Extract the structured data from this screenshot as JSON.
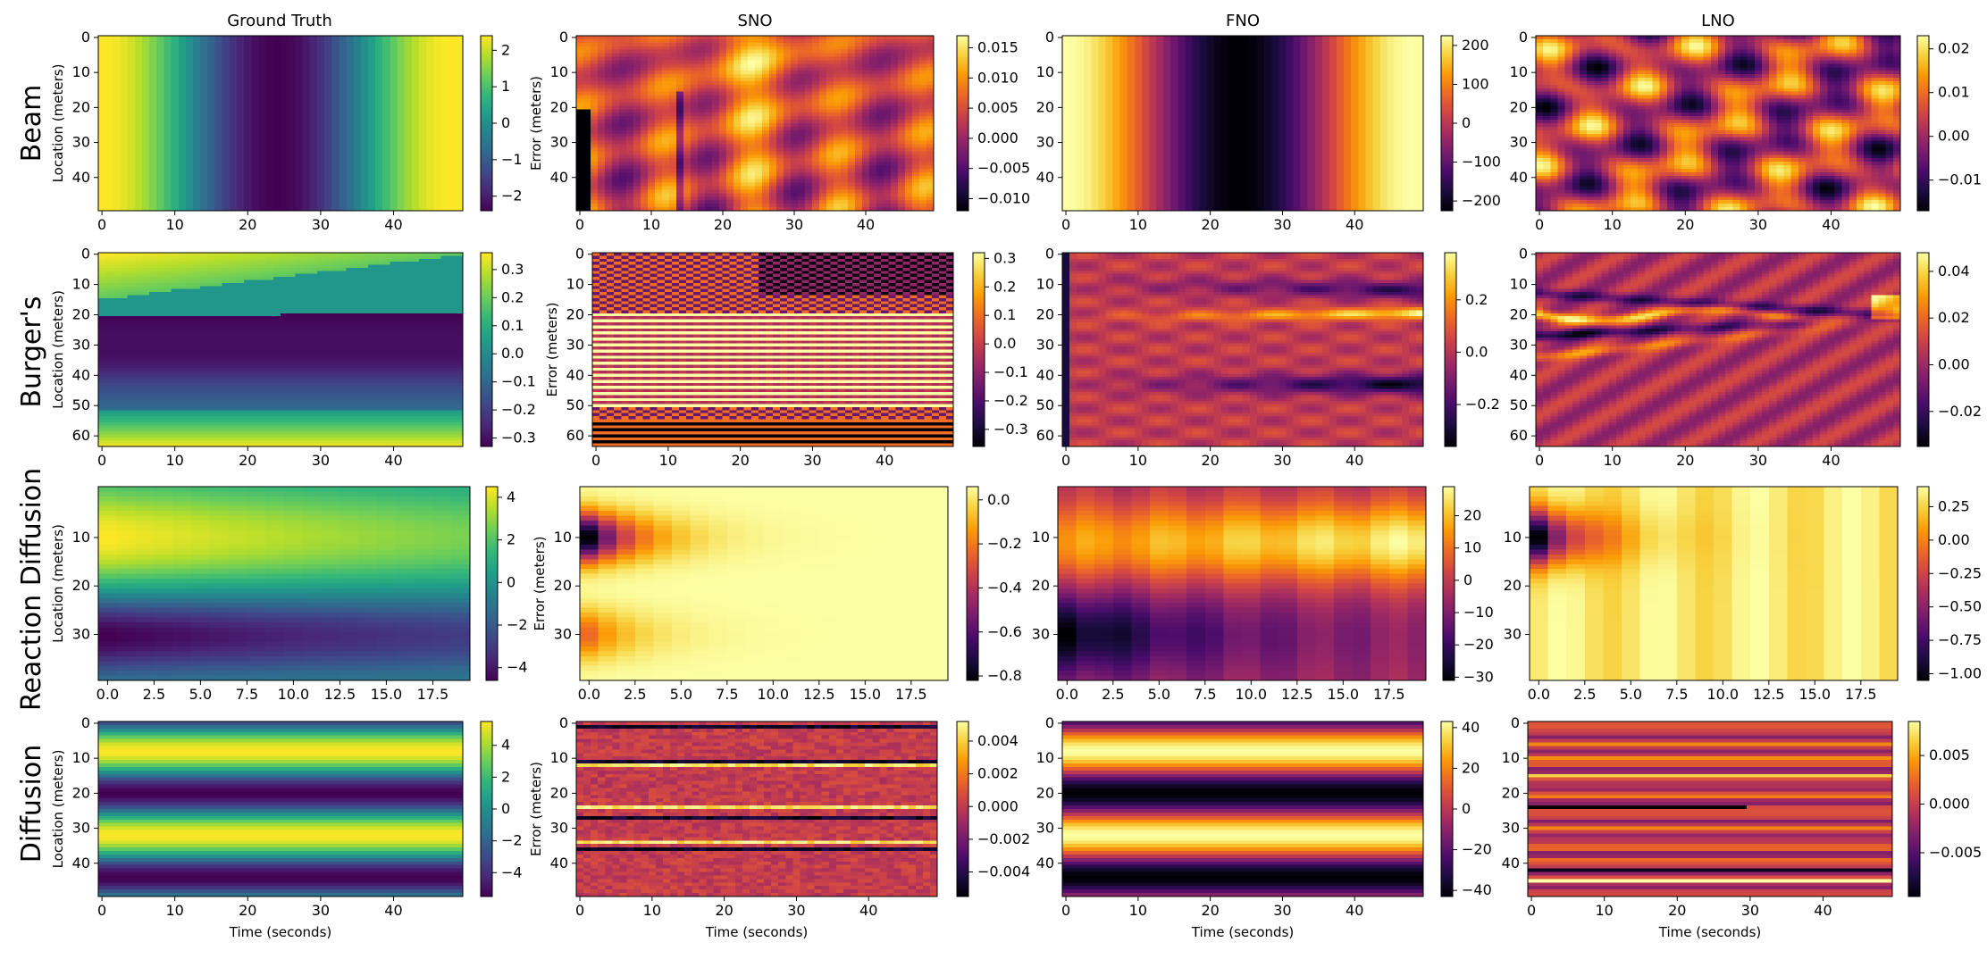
{
  "figure": {
    "columns": [
      "Ground Truth",
      "SNO",
      "FNO",
      "LNO"
    ],
    "rows": [
      "Beam",
      "Burger's",
      "Reaction Diffusion",
      "Diffusion"
    ],
    "xlabel": "Time (seconds)"
  },
  "colormaps": {
    "viridis": [
      "#440154",
      "#482878",
      "#3e4989",
      "#31688e",
      "#26828e",
      "#1f9e89",
      "#35b779",
      "#6ece58",
      "#b5de2b",
      "#fde725"
    ],
    "inferno": [
      "#000004",
      "#1b0c41",
      "#4a0c6b",
      "#781c6d",
      "#a52c60",
      "#cf4446",
      "#ed6925",
      "#fb9b06",
      "#f7d13d",
      "#fcffa4"
    ]
  },
  "chart_data": [
    {
      "type": "heatmap",
      "name": "beam-ground-truth",
      "row": "Beam",
      "column": "Ground Truth",
      "cmap": "viridis",
      "pattern": "beam-gt",
      "ylabel": "Location (meters)",
      "xlabel": "",
      "nx": 50,
      "ny": 50,
      "xlim": [
        0,
        49
      ],
      "ylim": [
        49,
        0
      ],
      "xticks": [
        0,
        10,
        20,
        30,
        40
      ],
      "xtick_labels": [
        "0",
        "10",
        "20",
        "30",
        "40"
      ],
      "yticks": [
        0,
        10,
        20,
        30,
        40
      ],
      "ytick_labels": [
        "0",
        "10",
        "20",
        "30",
        "40"
      ],
      "vmin": -2.4,
      "vmax": 2.4,
      "cbar_ticks": [
        2,
        1,
        0,
        -1,
        -2
      ],
      "cbar_labels": [
        "2",
        "1",
        "0",
        "−1",
        "−2"
      ]
    },
    {
      "type": "heatmap",
      "name": "beam-sno",
      "row": "Beam",
      "column": "SNO",
      "cmap": "inferno",
      "pattern": "beam-sno",
      "ylabel": "Error (meters)",
      "xlabel": "",
      "nx": 50,
      "ny": 50,
      "xlim": [
        0,
        49
      ],
      "ylim": [
        49,
        0
      ],
      "xticks": [
        0,
        10,
        20,
        30,
        40
      ],
      "xtick_labels": [
        "0",
        "10",
        "20",
        "30",
        "40"
      ],
      "yticks": [
        0,
        10,
        20,
        30,
        40
      ],
      "ytick_labels": [
        "0",
        "10",
        "20",
        "30",
        "40"
      ],
      "vmin": -0.012,
      "vmax": 0.017,
      "cbar_ticks": [
        0.015,
        0.01,
        0.005,
        0,
        -0.005,
        -0.01
      ],
      "cbar_labels": [
        "0.015",
        "0.010",
        "0.005",
        "0.000",
        "−0.005",
        "−0.010"
      ]
    },
    {
      "type": "heatmap",
      "name": "beam-fno",
      "row": "Beam",
      "column": "FNO",
      "cmap": "inferno",
      "pattern": "beam-fno",
      "ylabel": "",
      "xlabel": "",
      "nx": 50,
      "ny": 50,
      "xlim": [
        0,
        49
      ],
      "ylim": [
        49,
        0
      ],
      "xticks": [
        0,
        10,
        20,
        30,
        40
      ],
      "xtick_labels": [
        "0",
        "10",
        "20",
        "30",
        "40"
      ],
      "yticks": [
        0,
        10,
        20,
        30,
        40
      ],
      "ytick_labels": [
        "0",
        "10",
        "20",
        "30",
        "40"
      ],
      "vmin": -225,
      "vmax": 225,
      "cbar_ticks": [
        200,
        100,
        0,
        -100,
        -200
      ],
      "cbar_labels": [
        "200",
        "100",
        "0",
        "−100",
        "−200"
      ]
    },
    {
      "type": "heatmap",
      "name": "beam-lno",
      "row": "Beam",
      "column": "LNO",
      "cmap": "inferno",
      "pattern": "beam-lno",
      "ylabel": "",
      "xlabel": "",
      "nx": 50,
      "ny": 50,
      "xlim": [
        0,
        49
      ],
      "ylim": [
        49,
        0
      ],
      "xticks": [
        0,
        10,
        20,
        30,
        40
      ],
      "xtick_labels": [
        "0",
        "10",
        "20",
        "30",
        "40"
      ],
      "yticks": [
        0,
        10,
        20,
        30,
        40
      ],
      "ytick_labels": [
        "0",
        "10",
        "20",
        "30",
        "40"
      ],
      "vmin": -0.017,
      "vmax": 0.023,
      "cbar_ticks": [
        0.02,
        0.01,
        0,
        -0.01
      ],
      "cbar_labels": [
        "0.02",
        "0.01",
        "0.00",
        "−0.01"
      ]
    },
    {
      "type": "heatmap",
      "name": "burgers-ground-truth",
      "row": "Burger's",
      "column": "Ground Truth",
      "cmap": "viridis",
      "pattern": "burgers-gt",
      "ylabel": "Location (meters)",
      "xlabel": "",
      "nx": 50,
      "ny": 64,
      "xlim": [
        0,
        49
      ],
      "ylim": [
        63,
        0
      ],
      "xticks": [
        0,
        10,
        20,
        30,
        40
      ],
      "xtick_labels": [
        "0",
        "10",
        "20",
        "30",
        "40"
      ],
      "yticks": [
        0,
        10,
        20,
        30,
        40,
        50,
        60
      ],
      "ytick_labels": [
        "0",
        "10",
        "20",
        "30",
        "40",
        "50",
        "60"
      ],
      "vmin": -0.33,
      "vmax": 0.36,
      "cbar_ticks": [
        0.3,
        0.2,
        0.1,
        0,
        -0.1,
        -0.2,
        -0.3
      ],
      "cbar_labels": [
        "0.3",
        "0.2",
        "0.1",
        "0.0",
        "−0.1",
        "−0.2",
        "−0.3"
      ]
    },
    {
      "type": "heatmap",
      "name": "burgers-sno",
      "row": "Burger's",
      "column": "SNO",
      "cmap": "inferno",
      "pattern": "burgers-sno",
      "ylabel": "Error (meters)",
      "xlabel": "",
      "nx": 50,
      "ny": 64,
      "xlim": [
        0,
        49
      ],
      "ylim": [
        63,
        0
      ],
      "xticks": [
        0,
        10,
        20,
        30,
        40
      ],
      "xtick_labels": [
        "0",
        "10",
        "20",
        "30",
        "40"
      ],
      "yticks": [
        0,
        10,
        20,
        30,
        40,
        50,
        60
      ],
      "ytick_labels": [
        "0",
        "10",
        "20",
        "30",
        "40",
        "50",
        "60"
      ],
      "vmin": -0.36,
      "vmax": 0.32,
      "cbar_ticks": [
        0.3,
        0.2,
        0.1,
        0,
        -0.1,
        -0.2,
        -0.3
      ],
      "cbar_labels": [
        "0.3",
        "0.2",
        "0.1",
        "0.0",
        "−0.1",
        "−0.2",
        "−0.3"
      ]
    },
    {
      "type": "heatmap",
      "name": "burgers-fno",
      "row": "Burger's",
      "column": "FNO",
      "cmap": "inferno",
      "pattern": "burgers-fno",
      "ylabel": "",
      "xlabel": "",
      "nx": 50,
      "ny": 64,
      "xlim": [
        0,
        49
      ],
      "ylim": [
        63,
        0
      ],
      "xticks": [
        0,
        10,
        20,
        30,
        40
      ],
      "xtick_labels": [
        "0",
        "10",
        "20",
        "30",
        "40"
      ],
      "yticks": [
        0,
        10,
        20,
        30,
        40,
        50,
        60
      ],
      "ytick_labels": [
        "0",
        "10",
        "20",
        "30",
        "40",
        "50",
        "60"
      ],
      "vmin": -0.36,
      "vmax": 0.38,
      "cbar_ticks": [
        0.2,
        0,
        -0.2
      ],
      "cbar_labels": [
        "0.2",
        "0.0",
        "−0.2"
      ]
    },
    {
      "type": "heatmap",
      "name": "burgers-lno",
      "row": "Burger's",
      "column": "LNO",
      "cmap": "inferno",
      "pattern": "burgers-lno",
      "ylabel": "",
      "xlabel": "",
      "nx": 50,
      "ny": 64,
      "xlim": [
        0,
        49
      ],
      "ylim": [
        63,
        0
      ],
      "xticks": [
        0,
        10,
        20,
        30,
        40
      ],
      "xtick_labels": [
        "0",
        "10",
        "20",
        "30",
        "40"
      ],
      "yticks": [
        0,
        10,
        20,
        30,
        40,
        50,
        60
      ],
      "ytick_labels": [
        "0",
        "10",
        "20",
        "30",
        "40",
        "50",
        "60"
      ],
      "vmin": -0.035,
      "vmax": 0.048,
      "cbar_ticks": [
        0.04,
        0.02,
        0,
        -0.02
      ],
      "cbar_labels": [
        "0.04",
        "0.02",
        "0.00",
        "−0.02"
      ]
    },
    {
      "type": "heatmap",
      "name": "reaction-diffusion-ground-truth",
      "row": "Reaction Diffusion",
      "column": "Ground Truth",
      "cmap": "viridis",
      "pattern": "rd-gt",
      "ylabel": "Location (meters)",
      "xlabel": "",
      "nx": 20,
      "ny": 40,
      "xlim": [
        0,
        19
      ],
      "ylim": [
        39,
        0
      ],
      "xticks": [
        0,
        2.5,
        5,
        7.5,
        10,
        12.5,
        15,
        17.5
      ],
      "xtick_labels": [
        "0.0",
        "2.5",
        "5.0",
        "7.5",
        "10.0",
        "12.5",
        "15.0",
        "17.5"
      ],
      "yticks": [
        10,
        20,
        30
      ],
      "ytick_labels": [
        "10",
        "20",
        "30"
      ],
      "vmin": -4.6,
      "vmax": 4.5,
      "cbar_ticks": [
        4,
        2,
        0,
        -2,
        -4
      ],
      "cbar_labels": [
        "4",
        "2",
        "0",
        "−2",
        "−4"
      ]
    },
    {
      "type": "heatmap",
      "name": "reaction-diffusion-sno",
      "row": "Reaction Diffusion",
      "column": "SNO",
      "cmap": "inferno",
      "pattern": "rd-sno",
      "ylabel": "Error (meters)",
      "xlabel": "",
      "nx": 20,
      "ny": 40,
      "xlim": [
        0,
        19
      ],
      "ylim": [
        39,
        0
      ],
      "xticks": [
        0,
        2.5,
        5,
        7.5,
        10,
        12.5,
        15,
        17.5
      ],
      "xtick_labels": [
        "0.0",
        "2.5",
        "5.0",
        "7.5",
        "10.0",
        "12.5",
        "15.0",
        "17.5"
      ],
      "yticks": [
        10,
        20,
        30
      ],
      "ytick_labels": [
        "10",
        "20",
        "30"
      ],
      "vmin": -0.82,
      "vmax": 0.06,
      "cbar_ticks": [
        0,
        -0.2,
        -0.4,
        -0.6,
        -0.8
      ],
      "cbar_labels": [
        "0.0",
        "−0.2",
        "−0.4",
        "−0.6",
        "−0.8"
      ]
    },
    {
      "type": "heatmap",
      "name": "reaction-diffusion-fno",
      "row": "Reaction Diffusion",
      "column": "FNO",
      "cmap": "inferno",
      "pattern": "rd-fno",
      "ylabel": "",
      "xlabel": "",
      "nx": 20,
      "ny": 40,
      "xlim": [
        0,
        19
      ],
      "ylim": [
        39,
        0
      ],
      "xticks": [
        0,
        2.5,
        5,
        7.5,
        10,
        12.5,
        15,
        17.5
      ],
      "xtick_labels": [
        "0.0",
        "2.5",
        "5.0",
        "7.5",
        "10.0",
        "12.5",
        "15.0",
        "17.5"
      ],
      "yticks": [
        10,
        20,
        30
      ],
      "ytick_labels": [
        "10",
        "20",
        "30"
      ],
      "vmin": -31,
      "vmax": 29,
      "cbar_ticks": [
        20,
        10,
        0,
        -10,
        -20,
        -30
      ],
      "cbar_labels": [
        "20",
        "10",
        "0",
        "−10",
        "−20",
        "−30"
      ]
    },
    {
      "type": "heatmap",
      "name": "reaction-diffusion-lno",
      "row": "Reaction Diffusion",
      "column": "LNO",
      "cmap": "inferno",
      "pattern": "rd-lno",
      "ylabel": "",
      "xlabel": "",
      "nx": 20,
      "ny": 40,
      "xlim": [
        0,
        19
      ],
      "ylim": [
        39,
        0
      ],
      "xticks": [
        0,
        2.5,
        5,
        7.5,
        10,
        12.5,
        15,
        17.5
      ],
      "xtick_labels": [
        "0.0",
        "2.5",
        "5.0",
        "7.5",
        "10.0",
        "12.5",
        "15.0",
        "17.5"
      ],
      "yticks": [
        10,
        20,
        30
      ],
      "ytick_labels": [
        "10",
        "20",
        "30"
      ],
      "vmin": -1.05,
      "vmax": 0.4,
      "cbar_ticks": [
        0.25,
        0,
        -0.25,
        -0.5,
        -0.75,
        -1
      ],
      "cbar_labels": [
        "0.25",
        "0.00",
        "−0.25",
        "−0.50",
        "−0.75",
        "−1.00"
      ]
    },
    {
      "type": "heatmap",
      "name": "diffusion-ground-truth",
      "row": "Diffusion",
      "column": "Ground Truth",
      "cmap": "viridis",
      "pattern": "diff-gt",
      "ylabel": "Location (meters)",
      "xlabel": "Time (seconds)",
      "nx": 50,
      "ny": 50,
      "xlim": [
        0,
        49
      ],
      "ylim": [
        49,
        0
      ],
      "xticks": [
        0,
        10,
        20,
        30,
        40
      ],
      "xtick_labels": [
        "0",
        "10",
        "20",
        "30",
        "40"
      ],
      "yticks": [
        0,
        10,
        20,
        30,
        40
      ],
      "ytick_labels": [
        "0",
        "10",
        "20",
        "30",
        "40"
      ],
      "vmin": -5.5,
      "vmax": 5.5,
      "cbar_ticks": [
        4,
        2,
        0,
        -2,
        -4
      ],
      "cbar_labels": [
        "4",
        "2",
        "0",
        "−2",
        "−4"
      ]
    },
    {
      "type": "heatmap",
      "name": "diffusion-sno",
      "row": "Diffusion",
      "column": "SNO",
      "cmap": "inferno",
      "pattern": "diff-sno",
      "ylabel": "Error (meters)",
      "xlabel": "Time (seconds)",
      "nx": 50,
      "ny": 50,
      "xlim": [
        0,
        49
      ],
      "ylim": [
        49,
        0
      ],
      "xticks": [
        0,
        10,
        20,
        30,
        40
      ],
      "xtick_labels": [
        "0",
        "10",
        "20",
        "30",
        "40"
      ],
      "yticks": [
        0,
        10,
        20,
        30,
        40
      ],
      "ytick_labels": [
        "0",
        "10",
        "20",
        "30",
        "40"
      ],
      "vmin": -0.0055,
      "vmax": 0.0052,
      "cbar_ticks": [
        0.004,
        0.002,
        0,
        -0.002,
        -0.004
      ],
      "cbar_labels": [
        "0.004",
        "0.002",
        "0.000",
        "−0.002",
        "−0.004"
      ]
    },
    {
      "type": "heatmap",
      "name": "diffusion-fno",
      "row": "Diffusion",
      "column": "FNO",
      "cmap": "inferno",
      "pattern": "diff-fno",
      "ylabel": "",
      "xlabel": "Time (seconds)",
      "nx": 50,
      "ny": 50,
      "xlim": [
        0,
        49
      ],
      "ylim": [
        49,
        0
      ],
      "xticks": [
        0,
        10,
        20,
        30,
        40
      ],
      "xtick_labels": [
        "0",
        "10",
        "20",
        "30",
        "40"
      ],
      "yticks": [
        0,
        10,
        20,
        30,
        40
      ],
      "ytick_labels": [
        "0",
        "10",
        "20",
        "30",
        "40"
      ],
      "vmin": -43,
      "vmax": 43,
      "cbar_ticks": [
        40,
        20,
        0,
        -20,
        -40
      ],
      "cbar_labels": [
        "40",
        "20",
        "0",
        "−20",
        "−40"
      ]
    },
    {
      "type": "heatmap",
      "name": "diffusion-lno",
      "row": "Diffusion",
      "column": "LNO",
      "cmap": "inferno",
      "pattern": "diff-lno",
      "ylabel": "",
      "xlabel": "Time (seconds)",
      "nx": 50,
      "ny": 50,
      "xlim": [
        0,
        49
      ],
      "ylim": [
        49,
        0
      ],
      "xticks": [
        0,
        10,
        20,
        30,
        40
      ],
      "xtick_labels": [
        "0",
        "10",
        "20",
        "30",
        "40"
      ],
      "yticks": [
        0,
        10,
        20,
        30,
        40
      ],
      "ytick_labels": [
        "0",
        "10",
        "20",
        "30",
        "40"
      ],
      "vmin": -0.0095,
      "vmax": 0.0085,
      "cbar_ticks": [
        0.005,
        0,
        -0.005
      ],
      "cbar_labels": [
        "0.005",
        "0.000",
        "−0.005"
      ]
    }
  ]
}
